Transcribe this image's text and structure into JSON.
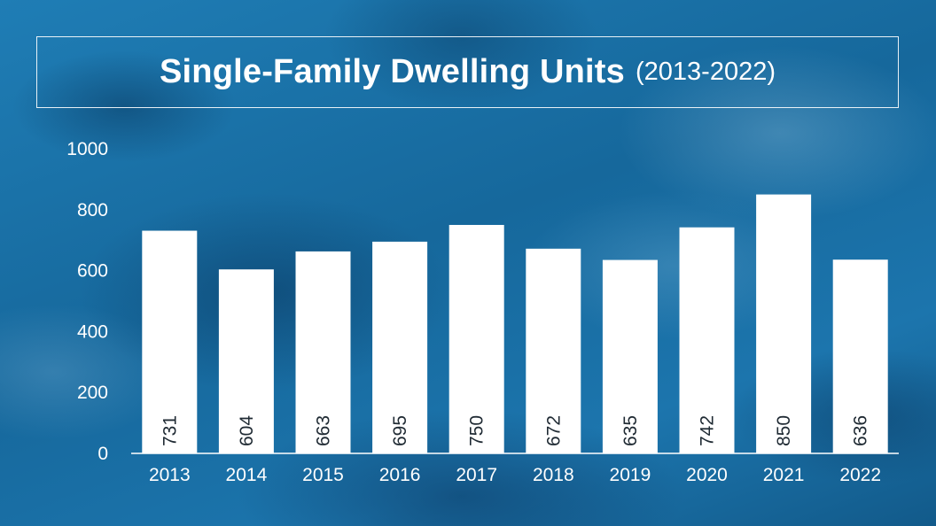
{
  "title": {
    "main": "Single-Family Dwelling Units",
    "sub": "(2013-2022)"
  },
  "colors": {
    "background": "#1a6fa3",
    "bar": "#ffffff",
    "text": "#ffffff",
    "value_label": "#1f2a33"
  },
  "chart_data": {
    "type": "bar",
    "title": "Single-Family Dwelling Units (2013-2022)",
    "xlabel": "",
    "ylabel": "",
    "categories": [
      "2013",
      "2014",
      "2015",
      "2016",
      "2017",
      "2018",
      "2019",
      "2020",
      "2021",
      "2022"
    ],
    "values": [
      731,
      604,
      663,
      695,
      750,
      672,
      635,
      742,
      850,
      636
    ],
    "ylim": [
      0,
      1000
    ],
    "yticks": [
      0,
      200,
      400,
      600,
      800,
      1000
    ],
    "grid": false,
    "legend": "none",
    "data_labels": "rotated inside bar bottom"
  }
}
